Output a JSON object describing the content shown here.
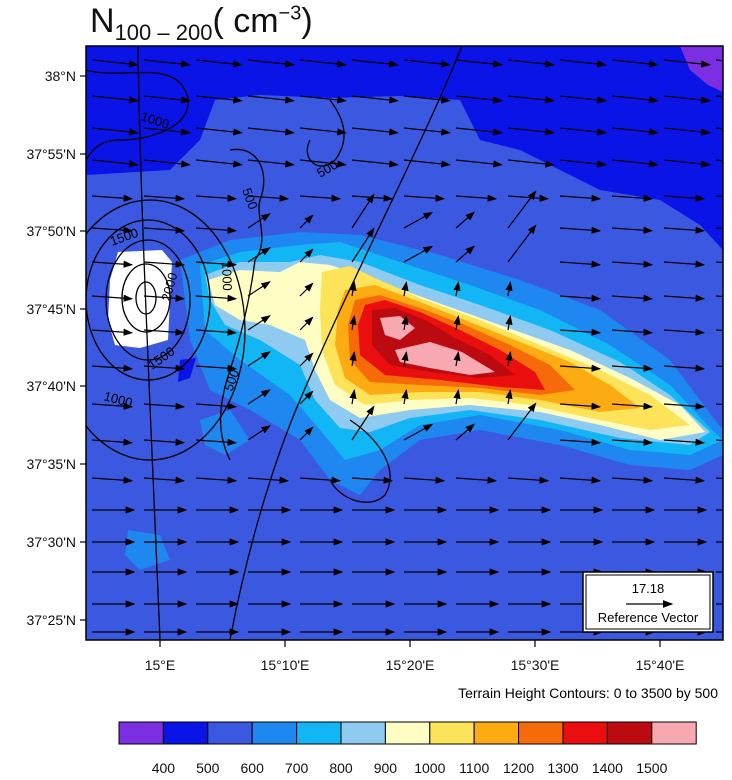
{
  "title": {
    "main": "N",
    "sub": "100 – 200",
    "unit_open": "( cm",
    "unit_sup": "−3",
    "unit_close": ")"
  },
  "lat_labels": [
    "38°N",
    "37°55'N",
    "37°50'N",
    "37°45'N",
    "37°40'N",
    "37°35'N",
    "37°30'N",
    "37°25'N"
  ],
  "lon_labels": [
    "15°E",
    "15°10'E",
    "15°20'E",
    "15°30'E",
    "15°40'E"
  ],
  "contour_labels": [
    "1000",
    "500",
    "500",
    "1500",
    "1000",
    "2000",
    "1500",
    "500",
    "1000"
  ],
  "terrain_note": "Terrain Height Contours: 0 to 3500 by 500",
  "reference_vector": {
    "value": "17.18",
    "label": "Reference Vector"
  },
  "colorbar": {
    "labels": [
      "400",
      "500",
      "600",
      "700",
      "800",
      "900",
      "1000",
      "1100",
      "1200",
      "1300",
      "1400",
      "1500"
    ],
    "colors": [
      "#7b2fe0",
      "#0a14e6",
      "#3b58e0",
      "#1e87f0",
      "#12b6f5",
      "#8fcbf0",
      "#fdfdc4",
      "#fde35a",
      "#fcab12",
      "#f76a0a",
      "#ea0e0e",
      "#bb0a10",
      "#f8a8b0"
    ]
  }
}
